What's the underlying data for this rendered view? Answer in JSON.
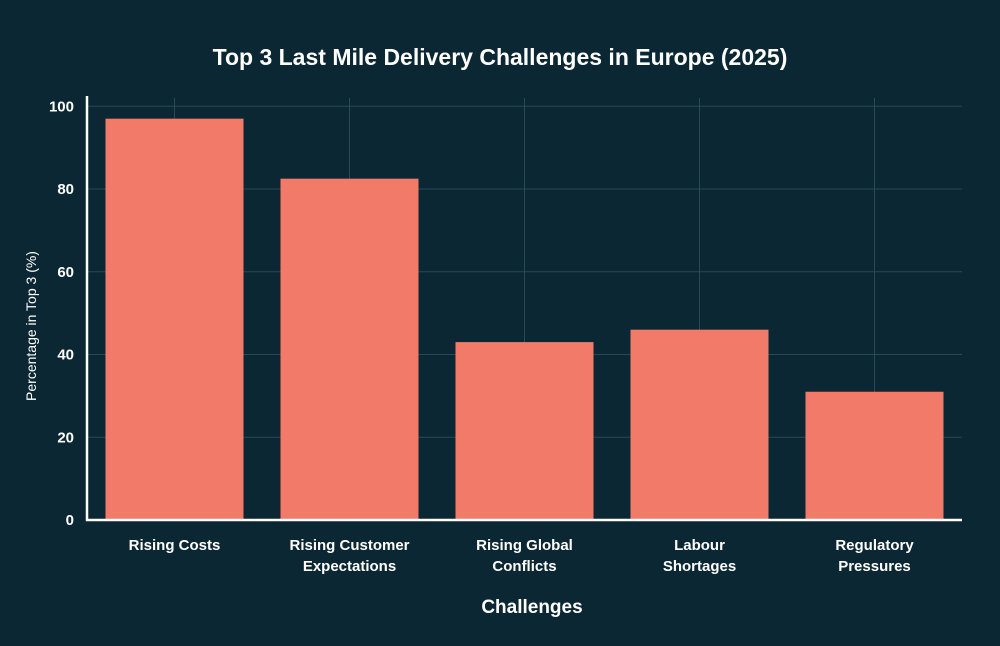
{
  "chart_data": {
    "type": "bar",
    "title": "Top 3 Last Mile Delivery Challenges in Europe (2025)",
    "xlabel": "Challenges",
    "ylabel": "Percentage in Top 3 (%)",
    "categories": [
      [
        "Rising Costs"
      ],
      [
        "Rising Customer",
        "Expectations"
      ],
      [
        "Rising Global",
        "Conflicts"
      ],
      [
        "Labour",
        "Shortages"
      ],
      [
        "Regulatory",
        "Pressures"
      ]
    ],
    "values": [
      97,
      82.5,
      43,
      46,
      31
    ],
    "ylim": [
      0,
      102
    ],
    "yticks": [
      0,
      20,
      40,
      60,
      80,
      100
    ],
    "grid": true
  },
  "colors": {
    "background": "#0b2733",
    "bar": "#f27a69",
    "grid": "#27495a",
    "axis": "#ffffff",
    "text": "#ffffff"
  }
}
